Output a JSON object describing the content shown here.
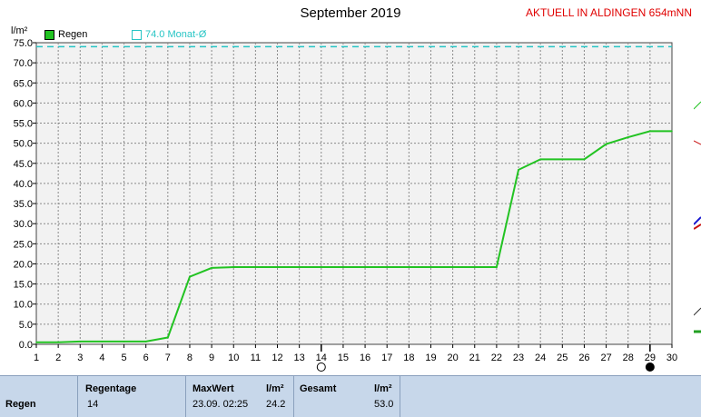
{
  "header": {
    "title": "September 2019",
    "station": "AKTUELL IN ALDINGEN 654mNN",
    "unit": "l/m²"
  },
  "legend": {
    "series_label": "Regen",
    "series_color": "#22c322",
    "reference_label": "74.0 Monat-Ø",
    "reference_color": "#26c5c5"
  },
  "colors": {
    "plot_bg": "#f2f2f2",
    "grid": "#8a8a8a",
    "panel_bg": "#c7d7ea"
  },
  "chart_data": {
    "type": "line",
    "title": "September 2019",
    "ylabel": "l/m²",
    "xlim": [
      1,
      30
    ],
    "ylim": [
      0,
      75
    ],
    "y_ticks": [
      "0.0",
      "5.0",
      "10.0",
      "15.0",
      "20.0",
      "25.0",
      "30.0",
      "35.0",
      "40.0",
      "45.0",
      "50.0",
      "55.0",
      "60.0",
      "65.0",
      "70.0",
      "75.0"
    ],
    "x_ticks": [
      "1",
      "2",
      "3",
      "4",
      "5",
      "6",
      "7",
      "8",
      "9",
      "10",
      "11",
      "12",
      "13",
      "14",
      "15",
      "16",
      "17",
      "18",
      "19",
      "20",
      "21",
      "22",
      "23",
      "24",
      "25",
      "26",
      "27",
      "28",
      "29",
      "30"
    ],
    "series": [
      {
        "name": "Regen",
        "x": [
          1,
          2,
          3,
          4,
          5,
          6,
          7,
          8,
          9,
          10,
          11,
          12,
          13,
          14,
          15,
          16,
          17,
          18,
          19,
          20,
          21,
          22,
          23,
          24,
          25,
          26,
          27,
          28,
          29,
          30
        ],
        "y": [
          0.5,
          0.5,
          0.7,
          0.7,
          0.7,
          0.7,
          1.7,
          16.8,
          19.0,
          19.2,
          19.2,
          19.2,
          19.2,
          19.2,
          19.2,
          19.2,
          19.2,
          19.2,
          19.2,
          19.2,
          19.2,
          19.2,
          43.4,
          46.0,
          46.0,
          46.0,
          49.8,
          51.5,
          53.0,
          53.0
        ]
      }
    ],
    "reference_line": {
      "label": "74.0 Monat-Ø",
      "value": 74.0
    },
    "moon_phases": [
      {
        "day": 14,
        "phase": "full"
      },
      {
        "day": 29,
        "phase": "new"
      }
    ],
    "grid": true
  },
  "stats": {
    "row_label": "Regen",
    "regentage_header": "Regentage",
    "regentage_value": "14",
    "maxwert_header": "MaxWert",
    "maxwert_unit": "l/m²",
    "maxwert_date": "23.09.  02:25",
    "maxwert_value": "24.2",
    "gesamt_header": "Gesamt",
    "gesamt_unit": "l/m²",
    "gesamt_value": "53.0"
  }
}
